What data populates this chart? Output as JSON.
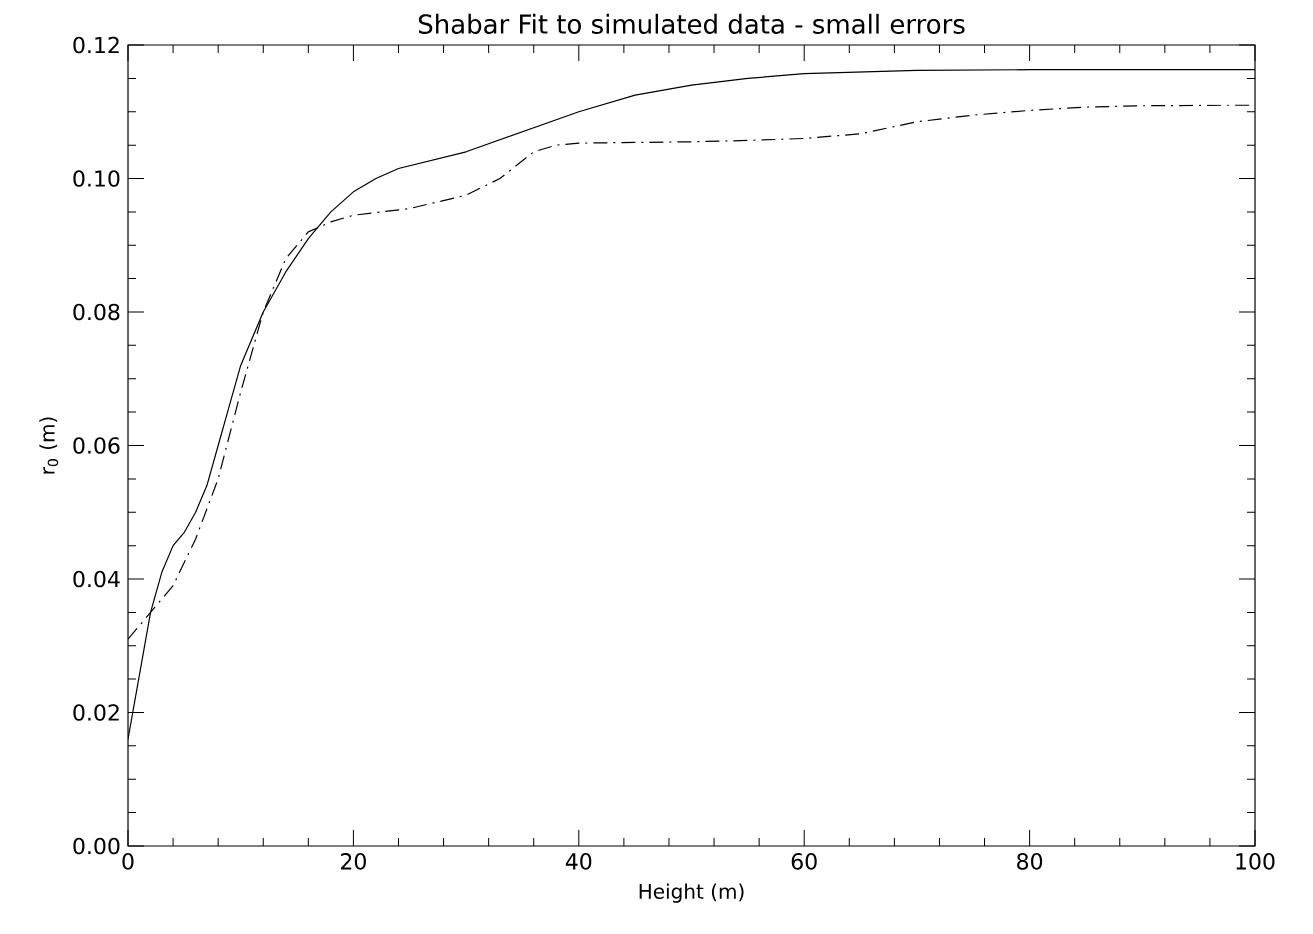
{
  "chart_data": {
    "type": "line",
    "title": "Shabar Fit to simulated data - small errors",
    "xlabel": "Height (m)",
    "ylabel": "r$_{0}$ (m)",
    "xlim": [
      0,
      100
    ],
    "xticks": [
      0,
      20,
      40,
      60,
      80,
      100
    ],
    "ylim": [
      0,
      0.12
    ],
    "yticks": [
      {
        "value": 0,
        "label": "0.00"
      },
      {
        "value": 0.02,
        "label": "0.02"
      },
      {
        "value": 0.04,
        "label": "0.04"
      },
      {
        "value": 0.06,
        "label": "0.06"
      },
      {
        "value": 0.08,
        "label": "0.08"
      },
      {
        "value": 0.1,
        "label": "0.10"
      },
      {
        "value": 0.12,
        "label": "0.12"
      }
    ],
    "grid": false,
    "marker": "none",
    "series": [
      {
        "color": "#000000",
        "line_style": "solid",
        "x": [
          0,
          2,
          3,
          4,
          5,
          6,
          7,
          8,
          9,
          10,
          12,
          14,
          16,
          18,
          20,
          22,
          24,
          30,
          40,
          45,
          50,
          55,
          60,
          70,
          80,
          100
        ],
        "values": [
          0.016,
          0.035,
          0.041,
          0.045,
          0.047,
          0.05,
          0.054,
          0.06,
          0.066,
          0.072,
          0.08,
          0.086,
          0.091,
          0.095,
          0.098,
          0.1,
          0.1015,
          0.104,
          0.11,
          0.1125,
          0.114,
          0.115,
          0.1157,
          0.1162,
          0.1163,
          0.1163
        ]
      },
      {
        "color": "#000000",
        "line_style": "dashdot",
        "x": [
          0,
          2,
          4,
          6,
          8,
          10,
          12,
          14,
          16,
          18,
          20,
          25,
          30,
          33,
          36,
          38,
          40,
          50,
          55,
          60,
          65,
          70,
          75,
          80,
          85,
          90,
          100
        ],
        "values": [
          0.031,
          0.035,
          0.039,
          0.046,
          0.055,
          0.068,
          0.08,
          0.088,
          0.092,
          0.0935,
          0.0945,
          0.0955,
          0.0975,
          0.1,
          0.104,
          0.105,
          0.1053,
          0.1055,
          0.1057,
          0.106,
          0.1067,
          0.1085,
          0.1095,
          0.1102,
          0.1107,
          0.1109,
          0.111
        ]
      }
    ]
  }
}
